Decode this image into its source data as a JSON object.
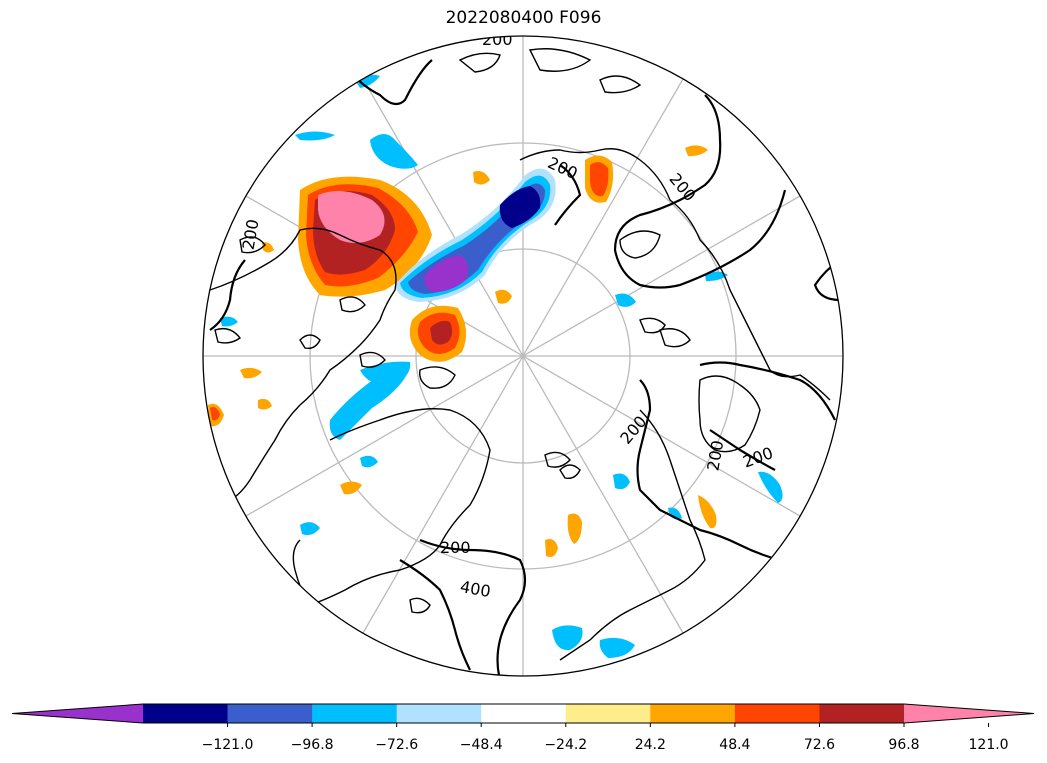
{
  "title": "2022080400 F096",
  "map": {
    "projection": "north-polar-stereographic",
    "contour_labels": [
      "200",
      "200",
      "200",
      "200",
      "200",
      "200",
      "200",
      "200",
      "400"
    ]
  },
  "colorbar": {
    "extend": "both",
    "colors": [
      "#9932cc",
      "#00008b",
      "#3a5fcd",
      "#00bfff",
      "#b0e2ff",
      "#ffffff",
      "#ffec8b",
      "#ffa500",
      "#ff4500",
      "#b22222",
      "#ff82ab"
    ],
    "tick_labels": [
      "−121.0",
      "−96.8",
      "−72.6",
      "−48.4",
      "−24.2",
      "24.2",
      "48.4",
      "72.6",
      "96.8",
      "121.0"
    ]
  }
}
